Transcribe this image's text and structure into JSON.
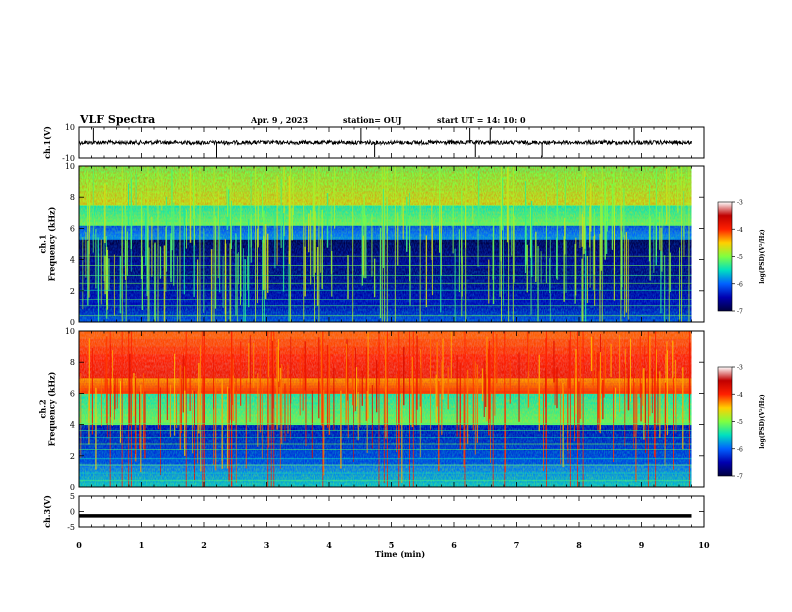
{
  "header": {
    "title": "VLF Spectra",
    "date": "Apr. 9  , 2023",
    "station": "station= OUJ",
    "start": "start  UT  =   14: 10: 0"
  },
  "colorbar": {
    "label": "log(PSD)(V²/Hz)",
    "ticks": [
      "-3",
      "-4",
      "-5",
      "-6",
      "-7"
    ],
    "stops": [
      "#ffffff",
      "#c00000",
      "#ff2000",
      "#ffd000",
      "#80ff40",
      "#00e0c0",
      "#0060ff",
      "#0000b0",
      "#000040"
    ]
  },
  "chart_data": [
    {
      "type": "line",
      "ylabel": "ch.1(V)",
      "ylim": [
        -10,
        10
      ],
      "ytick_labels": [
        "10",
        "-10"
      ],
      "x": [
        0,
        10
      ],
      "baseline": 0,
      "spikes_min": [
        0.23,
        2.2,
        4.51,
        4.73,
        6.25,
        6.34,
        6.58,
        7.41,
        8.88
      ]
    },
    {
      "type": "heatmap",
      "ylabel": "ch.1\nFrequency (kHz)",
      "ylim": [
        0,
        10
      ],
      "ytick_labels": [
        "0",
        "2",
        "4",
        "6",
        "8",
        "10"
      ],
      "clim": [
        -7,
        -3
      ],
      "bands": [
        {
          "from": 0,
          "to": 1.0,
          "level": -6.3
        },
        {
          "from": 1.0,
          "to": 3.5,
          "level": -6.6
        },
        {
          "from": 3.5,
          "to": 5.3,
          "level": -6.8
        },
        {
          "from": 5.3,
          "to": 6.2,
          "level": -6.0
        },
        {
          "from": 6.2,
          "to": 7.5,
          "level": -5.3
        },
        {
          "from": 7.5,
          "to": 10,
          "level": -4.9
        }
      ]
    },
    {
      "type": "heatmap",
      "ylabel": "ch.2\nFrequency (kHz)",
      "ylim": [
        0,
        10
      ],
      "ytick_labels": [
        "0",
        "2",
        "4",
        "6",
        "8",
        "10"
      ],
      "clim": [
        -7,
        -3
      ],
      "bands": [
        {
          "from": 0,
          "to": 1.5,
          "level": -5.8
        },
        {
          "from": 1.5,
          "to": 4.0,
          "level": -6.3
        },
        {
          "from": 4.0,
          "to": 6.0,
          "level": -5.3
        },
        {
          "from": 6.0,
          "to": 7.0,
          "level": -4.2
        },
        {
          "from": 7.0,
          "to": 10,
          "level": -4.0
        }
      ]
    },
    {
      "type": "line",
      "ylabel": "ch.3(V)",
      "ylim": [
        -5,
        5
      ],
      "ytick_labels": [
        "5",
        "0",
        "-5"
      ],
      "x": [
        0,
        9.8
      ],
      "y": [
        -1.4,
        -1.4
      ]
    }
  ],
  "xaxis": {
    "xlabel": "Time  (min)",
    "xlim": [
      0,
      10
    ],
    "tick_labels": [
      "0",
      "1",
      "2",
      "3",
      "4",
      "5",
      "6",
      "7",
      "8",
      "9",
      "10"
    ]
  }
}
